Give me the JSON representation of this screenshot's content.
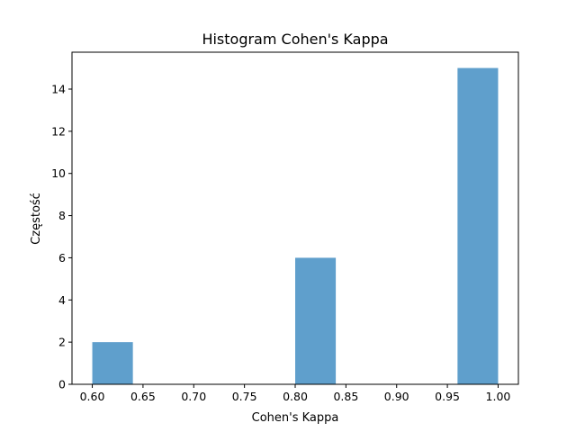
{
  "chart_data": {
    "type": "bar",
    "title": "Histogram Cohen's Kappa",
    "xlabel": "Cohen's Kappa",
    "ylabel": "Częstość",
    "xlim": [
      0.58,
      1.02
    ],
    "ylim": [
      0,
      15.75
    ],
    "xticks": [
      0.6,
      0.65,
      0.7,
      0.75,
      0.8,
      0.85,
      0.9,
      0.95,
      1.0
    ],
    "xtick_labels": [
      "0.60",
      "0.65",
      "0.70",
      "0.75",
      "0.80",
      "0.85",
      "0.90",
      "0.95",
      "1.00"
    ],
    "yticks": [
      0,
      2,
      4,
      6,
      8,
      10,
      12,
      14
    ],
    "ytick_labels": [
      "0",
      "2",
      "4",
      "6",
      "8",
      "10",
      "12",
      "14"
    ],
    "bins": [
      {
        "start": 0.6,
        "end": 0.64,
        "count": 2
      },
      {
        "start": 0.64,
        "end": 0.68,
        "count": 0
      },
      {
        "start": 0.68,
        "end": 0.72,
        "count": 0
      },
      {
        "start": 0.72,
        "end": 0.76,
        "count": 0
      },
      {
        "start": 0.76,
        "end": 0.8,
        "count": 0
      },
      {
        "start": 0.8,
        "end": 0.84,
        "count": 6
      },
      {
        "start": 0.84,
        "end": 0.88,
        "count": 0
      },
      {
        "start": 0.88,
        "end": 0.92,
        "count": 0
      },
      {
        "start": 0.92,
        "end": 0.96,
        "count": 0
      },
      {
        "start": 0.96,
        "end": 1.0,
        "count": 15
      }
    ],
    "grid": false,
    "bar_color": "#5f9fcc"
  }
}
